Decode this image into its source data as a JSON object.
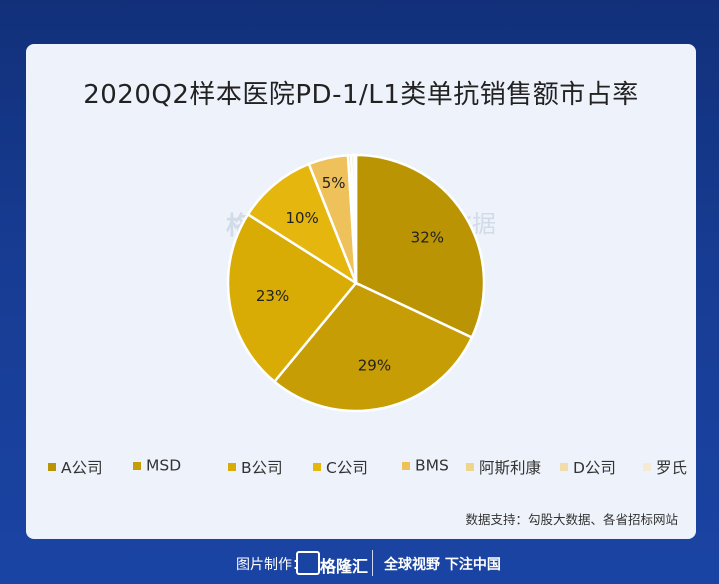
{
  "chart_data": {
    "type": "pie",
    "title": "2020Q2样本医院PD-1/L1类单抗销售额市占率",
    "slices": [
      {
        "label": "A公司",
        "value": 32,
        "display": "32%",
        "color": "#ba9402"
      },
      {
        "label": "MSD",
        "value": 29,
        "display": "29%",
        "color": "#c69d04"
      },
      {
        "label": "B公司",
        "value": 23,
        "display": "23%",
        "color": "#d9ac05"
      },
      {
        "label": "C公司",
        "value": 10,
        "display": "10%",
        "color": "#e5b70e"
      },
      {
        "label": "BMS",
        "value": 5,
        "display": "5%",
        "color": "#eec15a"
      },
      {
        "label": "阿斯利康",
        "value": 0.4,
        "display": "",
        "color": "#efd48c"
      },
      {
        "label": "D公司",
        "value": 0.4,
        "display": "",
        "color": "#f1dcab"
      },
      {
        "label": "罗氏",
        "value": 0.2,
        "display": "",
        "color": "#f5ead4"
      }
    ],
    "legend_position": "bottom"
  },
  "source": "数据支持：勾股大数据、各省招标网站",
  "watermarks": {
    "left": "格隆汇",
    "right": "勾股大数据"
  },
  "footer": {
    "credit": "图片制作：",
    "brand": "格隆汇",
    "slogan": "全球视野 下注中国"
  }
}
